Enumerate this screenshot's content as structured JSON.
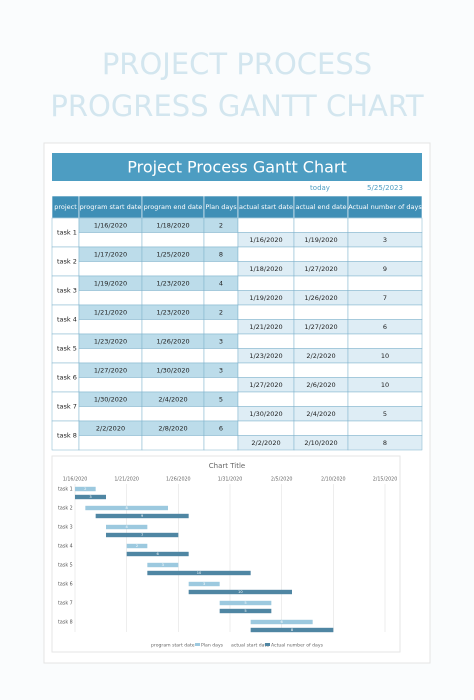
{
  "cover": {
    "title_lines": [
      "PROJECT PROCESS",
      "PROGRESS GANTT CHART"
    ]
  },
  "sheet": {
    "title": "Project Process Gantt Chart",
    "today_label": "today",
    "today": "5/25/2023",
    "headers": [
      "project",
      "program start date",
      "program end date",
      "Plan days",
      "actual start date",
      "actual end date",
      "Actual number of days"
    ],
    "rows": [
      {
        "task": "task 1",
        "plan": [
          "1/16/2020",
          "1/18/2020",
          2
        ],
        "actual": [
          "1/16/2020",
          "1/19/2020",
          3
        ]
      },
      {
        "task": "task 2",
        "plan": [
          "1/17/2020",
          "1/25/2020",
          8
        ],
        "actual": [
          "1/18/2020",
          "1/27/2020",
          9
        ]
      },
      {
        "task": "task 3",
        "plan": [
          "1/19/2020",
          "1/23/2020",
          4
        ],
        "actual": [
          "1/19/2020",
          "1/26/2020",
          7
        ]
      },
      {
        "task": "task 4",
        "plan": [
          "1/21/2020",
          "1/23/2020",
          2
        ],
        "actual": [
          "1/21/2020",
          "1/27/2020",
          6
        ]
      },
      {
        "task": "task 5",
        "plan": [
          "1/23/2020",
          "1/26/2020",
          3
        ],
        "actual": [
          "1/23/2020",
          "2/2/2020",
          10
        ]
      },
      {
        "task": "task 6",
        "plan": [
          "1/27/2020",
          "1/30/2020",
          3
        ],
        "actual": [
          "1/27/2020",
          "2/6/2020",
          10
        ]
      },
      {
        "task": "task 7",
        "plan": [
          "1/30/2020",
          "2/4/2020",
          5
        ],
        "actual": [
          "1/30/2020",
          "2/4/2020",
          5
        ]
      },
      {
        "task": "task 8",
        "plan": [
          "2/2/2020",
          "2/8/2020",
          6
        ],
        "actual": [
          "2/2/2020",
          "2/10/2020",
          8
        ]
      }
    ]
  },
  "chart": {
    "title": "Chart Title",
    "xticks": [
      "1/16/2020",
      "1/21/2020",
      "1/26/2020",
      "1/31/2020",
      "2/5/2020",
      "2/10/2020",
      "2/15/2020"
    ],
    "legend": [
      "program start date",
      "Plan days",
      "actual start date",
      "Actual number of days"
    ],
    "colors": {
      "plan": "#9cc9df",
      "actual": "#4f86a3"
    }
  }
}
